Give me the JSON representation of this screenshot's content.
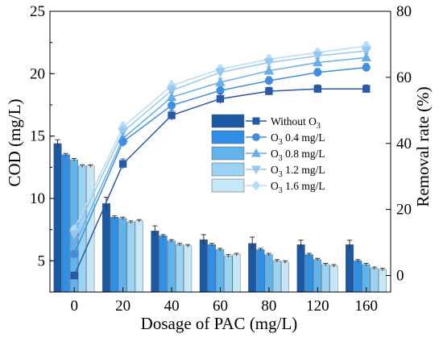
{
  "chart_data": {
    "type": "bar+line",
    "categories": [
      "0",
      "20",
      "40",
      "60",
      "80",
      "120",
      "160"
    ],
    "xlabel": "Dosage of PAC (mg/L)",
    "ylabel_left": "COD (mg/L)",
    "ylabel_right": "Removal rate (%)",
    "ylim_left": [
      2.5,
      25
    ],
    "yticks_left": [
      "5",
      "10",
      "15",
      "20",
      "25"
    ],
    "ylim_right": [
      -5,
      80
    ],
    "yticks_right": [
      "0",
      "20",
      "40",
      "60",
      "80"
    ],
    "legend_position": "center-right",
    "grid": false,
    "series": [
      {
        "name": "Without O",
        "subscript": "3",
        "color": "#2a58a8",
        "bar_color": "#1b58a6",
        "marker": "square",
        "cod": [
          14.4,
          9.6,
          7.4,
          6.7,
          6.4,
          6.3,
          6.3
        ],
        "cod_err": [
          0.3,
          0.5,
          0.4,
          0.4,
          0.5,
          0.35,
          0.35
        ],
        "removal": [
          0.0,
          33.8,
          48.5,
          53.5,
          55.8,
          56.5,
          56.5
        ],
        "removal_err": [
          1.0,
          1.5,
          1.5,
          1.5,
          1.2,
          1.2,
          1.2
        ]
      },
      {
        "name": "O",
        "subscript": "3",
        "suffix": " 0.4 mg/L",
        "color": "#3f8ee0",
        "bar_color": "#2f8fe6",
        "marker": "circle",
        "cod": [
          13.5,
          8.5,
          7.0,
          6.3,
          5.9,
          5.5,
          5.0
        ],
        "cod_err": [
          0.1,
          0.1,
          0.1,
          0.1,
          0.1,
          0.1,
          0.1
        ],
        "removal": [
          6.5,
          40.5,
          51.5,
          56.0,
          59.0,
          61.5,
          63.0
        ],
        "removal_err": [
          1.0,
          1.5,
          1.5,
          1.2,
          1.2,
          1.2,
          1.2
        ]
      },
      {
        "name": "O",
        "subscript": "3",
        "suffix": " 0.8 mg/L",
        "color": "#6aaee8",
        "bar_color": "#5fb4ec",
        "marker": "triangle-up",
        "cod": [
          13.1,
          8.4,
          6.6,
          5.9,
          5.5,
          5.1,
          4.7
        ],
        "cod_err": [
          0.1,
          0.1,
          0.1,
          0.1,
          0.1,
          0.1,
          0.1
        ],
        "removal": [
          9.0,
          41.5,
          54.0,
          58.5,
          62.0,
          64.5,
          66.0
        ],
        "removal_err": [
          1.0,
          1.5,
          1.5,
          1.2,
          1.2,
          1.2,
          1.2
        ]
      },
      {
        "name": "O",
        "subscript": "3",
        "suffix": " 1.2 mg/L",
        "color": "#99c8ef",
        "bar_color": "#9ad3f4",
        "marker": "triangle-down",
        "cod": [
          12.6,
          8.1,
          6.3,
          5.4,
          5.0,
          4.7,
          4.4
        ],
        "cod_err": [
          0.1,
          0.1,
          0.1,
          0.1,
          0.1,
          0.1,
          0.1
        ],
        "removal": [
          12.5,
          43.5,
          56.0,
          61.5,
          64.5,
          66.5,
          68.0
        ],
        "removal_err": [
          1.0,
          1.5,
          1.5,
          1.2,
          1.2,
          1.2,
          1.2
        ]
      },
      {
        "name": "O",
        "subscript": "3",
        "suffix": " 1.6 mg/L",
        "color": "#b7dcf5",
        "bar_color": "#c5e8f8",
        "marker": "diamond",
        "cod": [
          12.6,
          8.2,
          6.2,
          5.5,
          4.9,
          4.6,
          4.3
        ],
        "cod_err": [
          0.1,
          0.1,
          0.1,
          0.1,
          0.1,
          0.1,
          0.1
        ],
        "removal": [
          14.0,
          45.0,
          57.5,
          62.5,
          65.5,
          67.5,
          69.5
        ],
        "removal_err": [
          1.0,
          1.5,
          1.5,
          1.2,
          1.2,
          1.2,
          1.2
        ]
      }
    ]
  }
}
